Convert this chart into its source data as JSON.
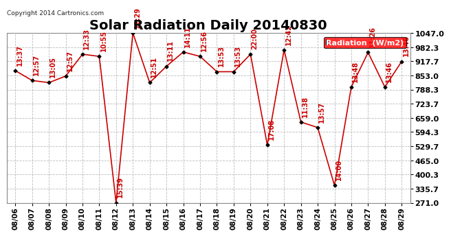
{
  "title": "Solar Radiation Daily 20140830",
  "copyright": "Copyright 2014 Cartronics.com",
  "legend_label": "Radiation  (W/m2)",
  "x_labels": [
    "08/06",
    "08/07",
    "08/08",
    "08/09",
    "08/10",
    "08/11",
    "08/12",
    "08/13",
    "08/14",
    "08/15",
    "08/16",
    "08/17",
    "08/18",
    "08/19",
    "08/20",
    "08/21",
    "08/22",
    "08/23",
    "08/24",
    "08/25",
    "08/26",
    "08/27",
    "08/28",
    "08/29"
  ],
  "y_values": [
    875,
    830,
    820,
    850,
    950,
    940,
    271,
    1047,
    820,
    895,
    960,
    940,
    870,
    870,
    950,
    535,
    970,
    640,
    615,
    350,
    800,
    958,
    800,
    917
  ],
  "time_labels": [
    "13:37",
    "12:57",
    "13:05",
    "12:57",
    "12:33",
    "10:55",
    "15:39",
    "12:29",
    "12:51",
    "13:11",
    "14:11",
    "12:56",
    "13:53",
    "13:53",
    "22:00",
    "17:08",
    "12:42",
    "11:38",
    "13:57",
    "14:00",
    "13:48",
    "11:26",
    "13:46",
    "13:46"
  ],
  "ylim_min": 271.0,
  "ylim_max": 1047.0,
  "yticks": [
    271.0,
    335.7,
    400.3,
    465.0,
    529.7,
    594.3,
    659.0,
    723.7,
    788.3,
    853.0,
    917.7,
    982.3,
    1047.0
  ],
  "line_color": "#cc0000",
  "marker_color": "#000000",
  "bg_color": "#ffffff",
  "grid_color": "#bbbbbb",
  "title_fontsize": 14,
  "annot_fontsize": 7,
  "tick_fontsize": 7.5,
  "ytick_fontsize": 8
}
